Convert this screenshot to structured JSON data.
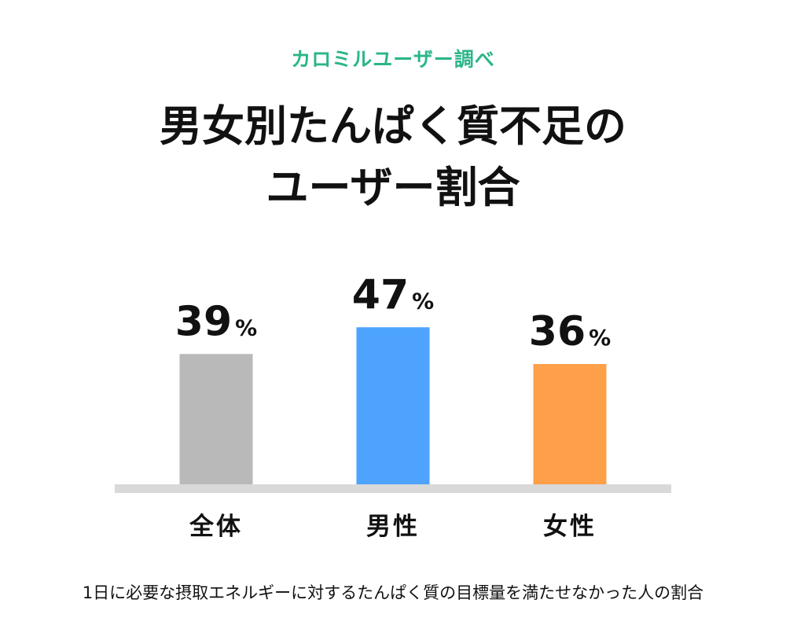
{
  "header": {
    "subtitle": "カロミルユーザー調べ",
    "title_line1": "男女別たんぱく質不足の",
    "title_line2": "ユーザー割合"
  },
  "footnote": "1日に必要な摂取エネルギーに対するたんぱく質の目標量を満たせなかった人の割合",
  "chart_data": {
    "type": "bar",
    "categories": [
      "全体",
      "男性",
      "女性"
    ],
    "values": [
      39,
      47,
      36
    ],
    "value_suffix": "%",
    "colors": [
      "#b9b9b9",
      "#4ea3ff",
      "#ff9f4a"
    ],
    "axis_color": "#d9d9d9",
    "ylim": [
      0,
      100
    ],
    "grid": false,
    "legend": "none"
  }
}
